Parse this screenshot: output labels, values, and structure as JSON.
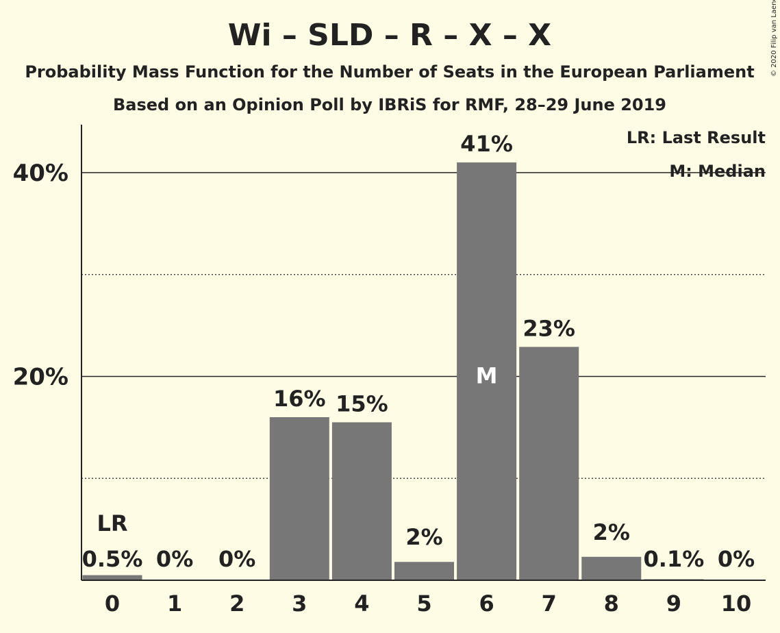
{
  "chart_data": {
    "type": "bar",
    "title": "Wi – SLD – R – X – X",
    "subtitle": "Probability Mass Function for the Number of Seats in the European Parliament",
    "subtitle2": "Based on an Opinion Poll by IBRiS for RMF, 28–29 June 2019",
    "copyright": "© 2020 Filip van Laenen",
    "categories": [
      "0",
      "1",
      "2",
      "3",
      "4",
      "5",
      "6",
      "7",
      "8",
      "9",
      "10"
    ],
    "values": [
      0.5,
      0,
      0,
      16,
      15.5,
      1.8,
      41,
      22.9,
      2.3,
      0.1,
      0
    ],
    "value_labels": [
      "0.5%",
      "0%",
      "0%",
      "16%",
      "15%",
      "2%",
      "41%",
      "23%",
      "2%",
      "0.1%",
      "0%"
    ],
    "ylim": [
      0,
      45
    ],
    "yticks": [
      20,
      40
    ],
    "ytick_labels": [
      "20%",
      "40%"
    ],
    "grid": true,
    "bar_color": "#777777",
    "last_result": {
      "category": "0",
      "marker": "LR"
    },
    "median": {
      "category": "6",
      "marker": "M"
    },
    "legend": {
      "position": "top-right",
      "lr": "LR: Last Result",
      "median": "M: Median"
    }
  }
}
